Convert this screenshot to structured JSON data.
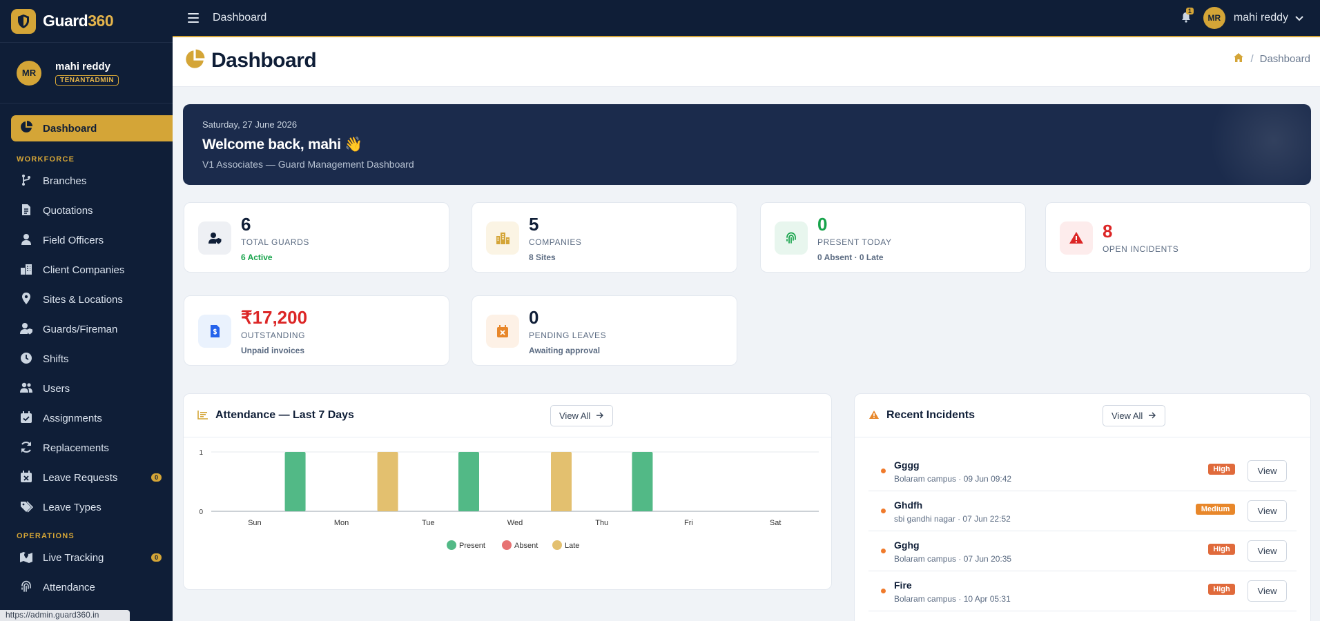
{
  "app": {
    "name_main": "Guard",
    "name_accent": "360"
  },
  "user": {
    "initials": "MR",
    "name": "mahi reddy",
    "role": "TENANTADMIN"
  },
  "sidebar": {
    "active": {
      "label": "Dashboard",
      "icon": "pie-chart-icon"
    },
    "sections": [
      {
        "title": "WORKFORCE",
        "items": [
          {
            "label": "Branches",
            "icon": "branch-icon"
          },
          {
            "label": "Quotations",
            "icon": "invoice-icon"
          },
          {
            "label": "Field Officers",
            "icon": "person-icon"
          },
          {
            "label": "Client Companies",
            "icon": "building-icon"
          },
          {
            "label": "Sites & Locations",
            "icon": "location-pin-icon"
          },
          {
            "label": "Guards/Fireman",
            "icon": "user-shield-icon"
          },
          {
            "label": "Shifts",
            "icon": "clock-icon"
          },
          {
            "label": "Users",
            "icon": "users-icon"
          },
          {
            "label": "Assignments",
            "icon": "calendar-check-icon"
          },
          {
            "label": "Replacements",
            "icon": "sync-icon"
          },
          {
            "label": "Leave Requests",
            "icon": "calendar-x-icon",
            "badge": "0"
          },
          {
            "label": "Leave Types",
            "icon": "tags-icon"
          }
        ]
      },
      {
        "title": "OPERATIONS",
        "items": [
          {
            "label": "Live Tracking",
            "icon": "map-location-icon",
            "badge": "0"
          },
          {
            "label": "Attendance",
            "icon": "fingerprint-icon"
          }
        ]
      }
    ]
  },
  "status_url": "https://admin.guard360.in",
  "topbar": {
    "title": "Dashboard",
    "notification_count": "1",
    "user_initials": "MR",
    "user_name": "mahi reddy"
  },
  "page": {
    "title": "Dashboard",
    "breadcrumb": "Dashboard"
  },
  "welcome": {
    "date": "Saturday, 27 June 2026",
    "title": "Welcome back, mahi 👋",
    "subtitle": "V1 Associates — Guard Management Dashboard"
  },
  "stats": [
    {
      "value": "6",
      "label": "TOTAL GUARDS",
      "note": "6 Active",
      "icon": "user-shield-icon",
      "color": "#0f1e37",
      "note_color": "#16a34a",
      "bg": "#eef0f4"
    },
    {
      "value": "5",
      "label": "COMPANIES",
      "note": "8 Sites",
      "icon": "city-icon",
      "color": "#0f1e37",
      "note_color": "#5b6b82",
      "bg": "#fbf4e4"
    },
    {
      "value": "0",
      "label": "PRESENT TODAY",
      "note": "0 Absent · 0 Late",
      "icon": "fingerprint-icon",
      "color": "#16a34a",
      "note_color": "#5b6b82",
      "bg": "#e8f6ee"
    },
    {
      "value": "8",
      "label": "OPEN INCIDENTS",
      "note": "",
      "icon": "warning-triangle-icon",
      "color": "#dc2626",
      "note_color": "#5b6b82",
      "bg": "#fdecec"
    },
    {
      "value": "₹17,200",
      "label": "OUTSTANDING",
      "note": "Unpaid invoices",
      "icon": "invoice-dollar-icon",
      "color": "#dc2626",
      "note_color": "#5b6b82",
      "bg": "#eaf2fd"
    },
    {
      "value": "0",
      "label": "PENDING LEAVES",
      "note": "Awaiting approval",
      "icon": "calendar-x-icon",
      "color": "#0f1e37",
      "note_color": "#5b6b82",
      "bg": "#fdf1e6"
    }
  ],
  "attendance": {
    "title": "Attendance — Last 7 Days",
    "view_all": "View All"
  },
  "chart_data": {
    "type": "bar",
    "categories": [
      "Sun",
      "Mon",
      "Tue",
      "Wed",
      "Thu",
      "Fri",
      "Sat"
    ],
    "series": [
      {
        "name": "Present",
        "values": [
          0,
          1,
          0,
          1,
          0,
          1,
          0
        ],
        "color": "#52b986"
      },
      {
        "name": "Absent",
        "values": [
          0,
          0,
          0,
          0,
          0,
          0,
          0
        ],
        "color": "#e77272"
      },
      {
        "name": "Late",
        "values": [
          0,
          1,
          0,
          1,
          0,
          0,
          0
        ],
        "color": "#e3c06f"
      }
    ],
    "ylim": [
      0,
      1
    ],
    "yticks": [
      "0",
      "1"
    ],
    "legend": "bottom",
    "grid": true
  },
  "incidents": {
    "title": "Recent Incidents",
    "view_all": "View All",
    "items": [
      {
        "name": "Gggg",
        "meta": "Bolaram campus · 09 Jun 09:42",
        "severity": "High",
        "sev_color": "#e06a3b",
        "view": "View"
      },
      {
        "name": "Ghdfh",
        "meta": "sbi gandhi nagar · 07 Jun 22:52",
        "severity": "Medium",
        "sev_color": "#e8872a",
        "view": "View"
      },
      {
        "name": "Gghg",
        "meta": "Bolaram campus · 07 Jun 20:35",
        "severity": "High",
        "sev_color": "#e06a3b",
        "view": "View"
      },
      {
        "name": "Fire",
        "meta": "Bolaram campus · 10 Apr 05:31",
        "severity": "High",
        "sev_color": "#e06a3b",
        "view": "View"
      }
    ]
  }
}
